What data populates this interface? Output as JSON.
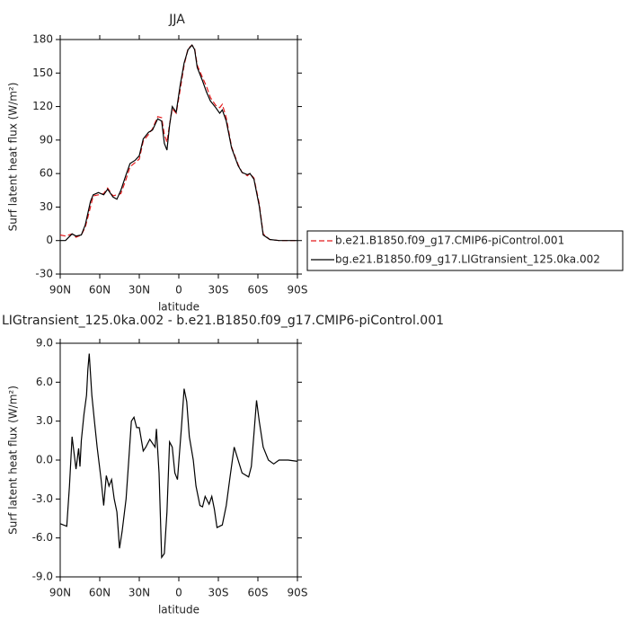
{
  "chart_data": [
    {
      "type": "line",
      "title": "JJA",
      "xlabel": "latitude",
      "ylabel": "Surf latent heat flux (W/m²)",
      "x": [
        90,
        86,
        81,
        78,
        74,
        71,
        67,
        65,
        61,
        57,
        54,
        50,
        47,
        44,
        40,
        37,
        33,
        30,
        27,
        23,
        20,
        16,
        13,
        11,
        9,
        7,
        5,
        2,
        -1,
        -4,
        -7,
        -10,
        -12,
        -14,
        -18,
        -21,
        -24,
        -28,
        -31,
        -33,
        -36,
        -40,
        -45,
        -48,
        -52,
        -54,
        -57,
        -61,
        -64,
        -69,
        -76,
        -90
      ],
      "series": [
        {
          "name": "b.e21.B1850.f09_g17.CMIP6-piControl.001",
          "color": "#e31a1c",
          "dashed": true,
          "values": [
            5,
            4,
            6,
            3,
            5,
            12,
            30,
            40,
            41,
            42,
            47,
            40,
            41,
            42,
            55,
            66,
            70,
            73,
            89,
            95,
            100,
            111,
            110,
            95,
            88,
            104,
            118,
            114,
            135,
            157,
            172,
            175,
            172,
            157,
            146,
            138,
            128,
            121,
            119,
            122,
            110,
            84,
            68,
            61,
            58,
            60,
            56,
            33,
            6,
            1,
            0,
            0
          ]
        },
        {
          "name": "bg.e21.B1850.f09_g17.LIGtransient_125.0ka.002",
          "color": "#000000",
          "dashed": false,
          "values": [
            0,
            0,
            6,
            4,
            5,
            14,
            35,
            41,
            43,
            41,
            46,
            39,
            37,
            45,
            59,
            69,
            72,
            76,
            91,
            97,
            99,
            109,
            107,
            87,
            81,
            103,
            120,
            115,
            139,
            159,
            171,
            175,
            171,
            155,
            143,
            133,
            125,
            119,
            114,
            117,
            107,
            83,
            67,
            61,
            59,
            60,
            55,
            31,
            5,
            1,
            0,
            0
          ]
        }
      ],
      "xlim": [
        90,
        -90
      ],
      "xticks": [
        {
          "value": 90,
          "label": "90N"
        },
        {
          "value": 60,
          "label": "60N"
        },
        {
          "value": 30,
          "label": "30N"
        },
        0,
        {
          "value": -30,
          "label": "30S"
        },
        {
          "value": -60,
          "label": "60S"
        },
        {
          "value": -90,
          "label": "90S"
        }
      ],
      "ylim": [
        -30,
        180
      ],
      "yticks": [
        -30,
        0,
        30,
        60,
        90,
        120,
        150,
        180
      ],
      "legend": "right"
    },
    {
      "type": "line",
      "title": "LIGtransient_125.0ka.002 - b.e21.B1850.f09_g17.CMIP6-piControl.001",
      "xlabel": "latitude",
      "ylabel": "Surf latent heat flux (W/m²)",
      "x": [
        90,
        85,
        83,
        81,
        78,
        76,
        75,
        74,
        72,
        70,
        69,
        68,
        66,
        64,
        62,
        59,
        57,
        55,
        53,
        51,
        49,
        47,
        45,
        43,
        40,
        38,
        36,
        34,
        32,
        30,
        27,
        25,
        22,
        18,
        17,
        15,
        13,
        11,
        9,
        7,
        5,
        3,
        1,
        -2,
        -4,
        -6,
        -8,
        -11,
        -13,
        -16,
        -18,
        -20,
        -23,
        -25,
        -27,
        -29,
        -33,
        -36,
        -39,
        -42,
        -45,
        -48,
        -53,
        -55,
        -57,
        -59,
        -61,
        -64,
        -68,
        -72,
        -76,
        -83,
        -90
      ],
      "series": [
        {
          "color": "#000000",
          "dashed": false,
          "values": [
            -4.9,
            -5.1,
            -2,
            1.8,
            -0.7,
            0.9,
            -0.5,
            1.5,
            3.5,
            5,
            7,
            8.2,
            5,
            3,
            1,
            -1.5,
            -3.5,
            -1.2,
            -2,
            -1.5,
            -3,
            -4,
            -6.8,
            -5.5,
            -3,
            0,
            3,
            3.3,
            2.5,
            2.5,
            0.7,
            1,
            1.6,
            1,
            2.4,
            -1,
            -7.5,
            -7.2,
            -4,
            1.4,
            1,
            -1,
            -1.5,
            2.5,
            5.5,
            4.5,
            1.8,
            0,
            -2,
            -3.5,
            -3.6,
            -2.8,
            -3.4,
            -2.8,
            -3.8,
            -5.2,
            -5,
            -3.5,
            -1.2,
            1,
            0,
            -1,
            -1.3,
            -0.5,
            2,
            4.6,
            3,
            1,
            0,
            -0.3,
            0,
            0,
            -0.1
          ]
        }
      ],
      "xlim": [
        90,
        -90
      ],
      "xticks": [
        {
          "value": 90,
          "label": "90N"
        },
        {
          "value": 60,
          "label": "60N"
        },
        {
          "value": 30,
          "label": "30N"
        },
        0,
        {
          "value": -30,
          "label": "30S"
        },
        {
          "value": -60,
          "label": "60S"
        },
        {
          "value": -90,
          "label": "90S"
        }
      ],
      "ylim": [
        -9,
        9
      ],
      "yticks": [
        {
          "value": -9,
          "label": "-9.0"
        },
        {
          "value": -6,
          "label": "-6.0"
        },
        {
          "value": -3,
          "label": "-3.0"
        },
        {
          "value": 0,
          "label": "0.0"
        },
        {
          "value": 3,
          "label": "3.0"
        },
        {
          "value": 6,
          "label": "6.0"
        },
        {
          "value": 9,
          "label": "9.0"
        }
      ]
    }
  ]
}
